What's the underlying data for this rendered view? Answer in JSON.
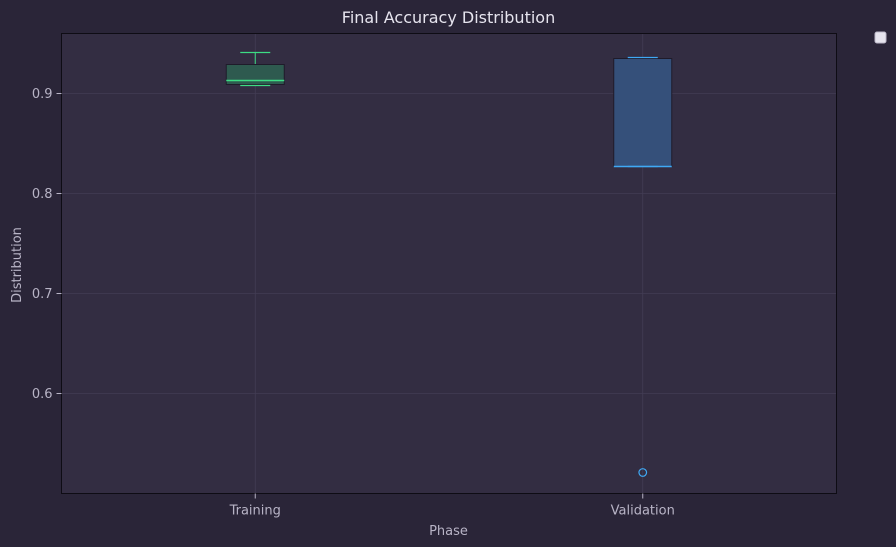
{
  "chart_data": {
    "type": "box",
    "title": "Final Accuracy Distribution",
    "xlabel": "Phase",
    "ylabel": "Distribution",
    "ylim": [
      0.5,
      0.96
    ],
    "yticks": [
      0.6,
      0.7,
      0.8,
      0.9
    ],
    "ytick_labels": [
      "0.6",
      "0.7",
      "0.8",
      "0.9"
    ],
    "grid": true,
    "legend": {
      "placement": "outside-top-right",
      "entries": []
    },
    "categories": [
      "Training",
      "Validation"
    ],
    "boxes": [
      {
        "category": "Training",
        "whisker_low": 0.908,
        "q1": 0.909,
        "median": 0.913,
        "q3": 0.929,
        "whisker_high": 0.941,
        "outliers": [],
        "color": "#3ddc84",
        "fill": "#2e5a4f"
      },
      {
        "category": "Validation",
        "whisker_low": 0.827,
        "q1": 0.827,
        "median": 0.827,
        "q3": 0.935,
        "whisker_high": 0.936,
        "outliers": [
          0.521
        ],
        "color": "#3fa9f5",
        "fill": "#35507a"
      }
    ],
    "colors": {
      "background": "#2a2538",
      "plot_background": "#332d42",
      "grid": "#433d54",
      "frame": "#0e0c14"
    }
  }
}
